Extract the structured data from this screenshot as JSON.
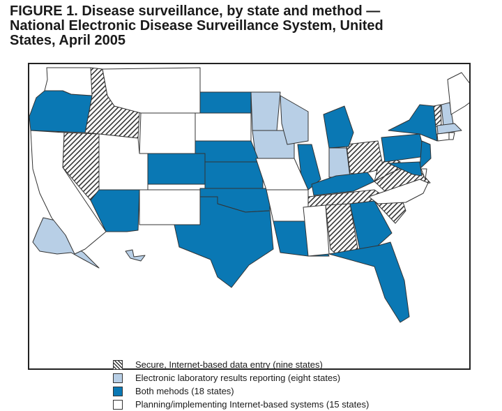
{
  "figure": {
    "title_lines": [
      "FIGURE 1. Disease surveillance, by state and method —",
      "National Electronic Disease Surveillance System, United",
      "States, April 2005"
    ]
  },
  "colors": {
    "secure": "hatched",
    "electronic_lab": "#b8cfe6",
    "both": "#0a78b4",
    "planning": "#ffffff",
    "outline": "#333333"
  },
  "legend": [
    {
      "category": "secure",
      "label": "Secure, Internet-based data entry (nine states)"
    },
    {
      "category": "electronic_lab",
      "label": "Electronic laboratory results reporting (eight states)"
    },
    {
      "category": "both",
      "label": "Both mehods (18 states)"
    },
    {
      "category": "planning",
      "label": "Planning/implementing Internet-based systems (15 states)"
    }
  ],
  "states": {
    "secure": [
      "ID",
      "NV",
      "OH",
      "WV",
      "VA",
      "TN",
      "AL",
      "SC",
      "VT"
    ],
    "electronic_lab": [
      "MN",
      "IA",
      "WI",
      "IN",
      "NH",
      "MA",
      "AK",
      "HI"
    ],
    "both": [
      "OR",
      "ND",
      "NE",
      "CO",
      "KS",
      "AZ",
      "OK",
      "TX",
      "LA",
      "IL",
      "MI",
      "KY",
      "GA",
      "FL",
      "NY",
      "PA",
      "NJ",
      "MD"
    ],
    "planning": [
      "WA",
      "MT",
      "WY",
      "SD",
      "UT",
      "NM",
      "MO",
      "AR",
      "MS",
      "CA",
      "NC",
      "ME",
      "CT",
      "RI",
      "DE"
    ]
  }
}
